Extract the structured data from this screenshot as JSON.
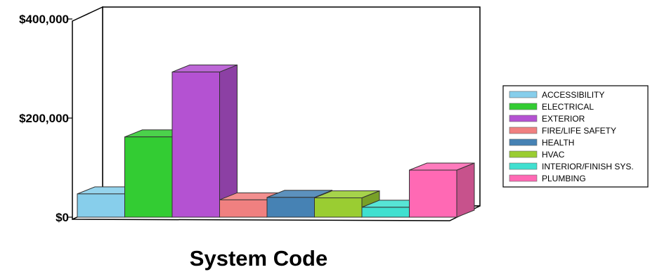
{
  "chart_data": {
    "type": "bar",
    "xlabel": "System Code",
    "ylabel": "",
    "ylim": [
      0,
      400000
    ],
    "y_ticks": [
      {
        "value": 0,
        "label": "$0"
      },
      {
        "value": 200000,
        "label": "$200,000"
      },
      {
        "value": 400000,
        "label": "$400,000"
      }
    ],
    "legend_position": "right",
    "grid": false,
    "categories": [
      "ACCESSIBILITY",
      "ELECTRICAL",
      "EXTERIOR",
      "FIRE/LIFE SAFETY",
      "HEALTH",
      "HVAC",
      "INTERIOR/FINISH SYS.",
      "PLUMBING"
    ],
    "values": [
      47000,
      162000,
      293000,
      35000,
      40000,
      39000,
      20000,
      95000
    ],
    "colors": [
      "#87CEEB",
      "#33CC33",
      "#B452D2",
      "#F08080",
      "#4682B4",
      "#9ACD32",
      "#40E0D0",
      "#FF69B4"
    ]
  }
}
